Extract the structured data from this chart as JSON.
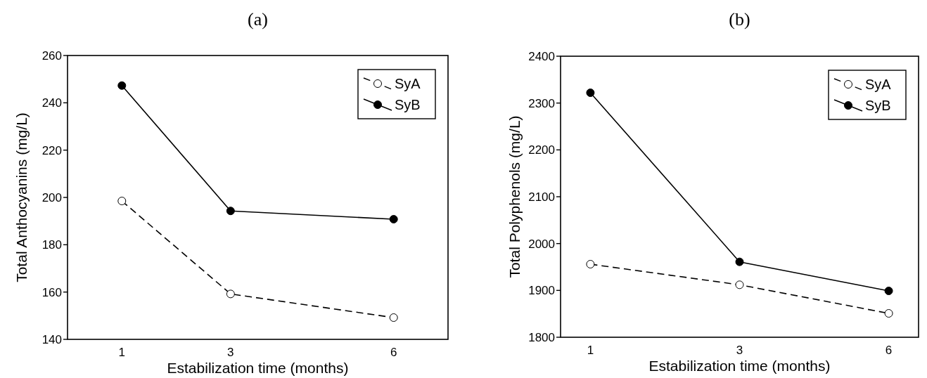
{
  "chart_data": [
    {
      "type": "line",
      "title": "(a)",
      "xlabel": "Estabilization time (months)",
      "ylabel": "Total Anthocyanins (mg/L)",
      "x": [
        1,
        3,
        6
      ],
      "xlim": [
        0,
        7
      ],
      "xticks": [
        1,
        3,
        6
      ],
      "ylim": [
        140,
        260
      ],
      "yticks": [
        140,
        160,
        180,
        200,
        220,
        240,
        260
      ],
      "marker": "circle",
      "legend": "top right",
      "grid": false,
      "series": [
        {
          "name": "SyA",
          "color": "#000000",
          "line_style": "dashed",
          "values": [
            198.5,
            159.2,
            149.2
          ]
        },
        {
          "name": "SyB",
          "color": "#000000",
          "line_style": "solid",
          "values": [
            247.3,
            194.3,
            190.8
          ]
        }
      ]
    },
    {
      "type": "line",
      "title": "(b)",
      "xlabel": "Estabilization time (months)",
      "ylabel": "Total Polyphenols (mg/L)",
      "categories": [
        "1",
        "3",
        "6"
      ],
      "ylim": [
        1800,
        2400
      ],
      "yticks": [
        1800,
        1900,
        2000,
        2100,
        2200,
        2300,
        2400
      ],
      "marker": "circle",
      "legend": "top right",
      "grid": false,
      "series": [
        {
          "name": "SyA",
          "color": "#000000",
          "line_style": "dashed",
          "values": [
            1956,
            1912,
            1851
          ]
        },
        {
          "name": "SyB",
          "color": "#000000",
          "line_style": "solid",
          "values": [
            2322,
            1961,
            1899
          ]
        }
      ]
    }
  ]
}
